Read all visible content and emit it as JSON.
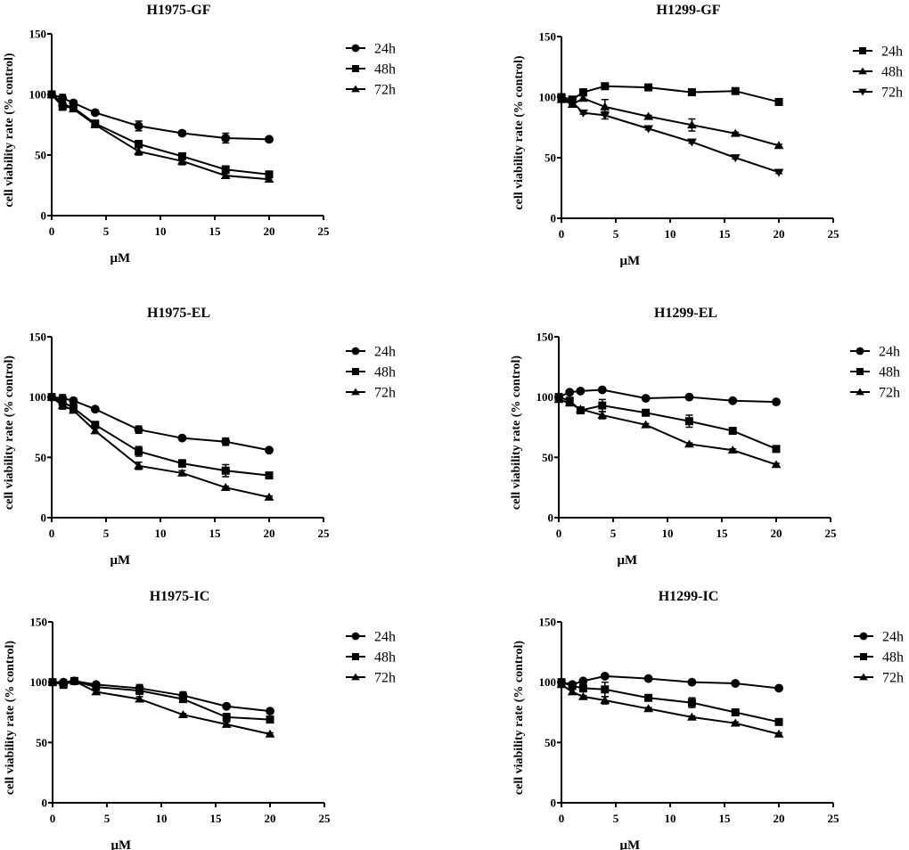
{
  "chart_data": [
    {
      "type": "line",
      "title": "H1975-GF",
      "xlabel": "μM",
      "ylabel": "cell viability rate (% control)",
      "xlim": [
        0,
        25
      ],
      "ylim": [
        0,
        150
      ],
      "xticks": [
        0,
        5,
        10,
        15,
        20,
        25
      ],
      "yticks": [
        0,
        50,
        100,
        150
      ],
      "legend_position": "right",
      "x": [
        0,
        1,
        2,
        4,
        8,
        12,
        16,
        20
      ],
      "series": [
        {
          "name": "24h",
          "marker": "circle",
          "values": [
            100,
            97,
            93,
            85,
            74,
            68,
            64,
            63
          ],
          "errors": [
            0,
            3,
            2,
            1,
            4,
            2,
            4,
            1
          ]
        },
        {
          "name": "48h",
          "marker": "square",
          "values": [
            100,
            90,
            89,
            76,
            59,
            49,
            38,
            34
          ],
          "errors": [
            0,
            3,
            3,
            2,
            3,
            2,
            3,
            2
          ]
        },
        {
          "name": "72h",
          "marker": "triangle-up",
          "values": [
            100,
            93,
            88,
            75,
            53,
            45,
            33,
            30
          ],
          "errors": [
            0,
            3,
            2,
            2,
            3,
            3,
            2,
            2
          ]
        }
      ]
    },
    {
      "type": "line",
      "title": "H1299-GF",
      "xlabel": "μM",
      "ylabel": "cell viability rate (% control)",
      "xlim": [
        0,
        25
      ],
      "ylim": [
        0,
        150
      ],
      "xticks": [
        0,
        5,
        10,
        15,
        20,
        25
      ],
      "yticks": [
        0,
        50,
        100,
        150
      ],
      "legend_position": "right",
      "x": [
        0,
        1,
        2,
        4,
        8,
        12,
        16,
        20
      ],
      "series": [
        {
          "name": "24h",
          "marker": "square",
          "values": [
            100,
            98,
            104,
            109,
            108,
            104,
            105,
            96
          ],
          "errors": [
            2,
            2,
            1,
            1,
            1,
            1,
            1,
            1
          ]
        },
        {
          "name": "48h",
          "marker": "triangle-up",
          "values": [
            98,
            94,
            99,
            92,
            84,
            77,
            70,
            60
          ],
          "errors": [
            2,
            2,
            2,
            6,
            1,
            5,
            1,
            1
          ]
        },
        {
          "name": "72h",
          "marker": "triangle-down",
          "values": [
            99,
            96,
            87,
            85,
            74,
            63,
            50,
            38
          ],
          "errors": [
            2,
            2,
            1,
            3,
            1,
            1,
            1,
            1
          ]
        }
      ]
    },
    {
      "type": "line",
      "title": "H1975-EL",
      "xlabel": "μM",
      "ylabel": "cell viability rate (% control)",
      "xlim": [
        0,
        25
      ],
      "ylim": [
        0,
        150
      ],
      "xticks": [
        0,
        5,
        10,
        15,
        20,
        25
      ],
      "yticks": [
        0,
        50,
        100,
        150
      ],
      "legend_position": "right",
      "x": [
        0,
        1,
        2,
        4,
        8,
        12,
        16,
        20
      ],
      "series": [
        {
          "name": "24h",
          "marker": "circle",
          "values": [
            100,
            99,
            97,
            90,
            73,
            66,
            63,
            56
          ],
          "errors": [
            0,
            3,
            2,
            1,
            3,
            1,
            3,
            1
          ]
        },
        {
          "name": "48h",
          "marker": "square",
          "values": [
            100,
            96,
            91,
            77,
            55,
            45,
            39,
            35
          ],
          "errors": [
            0,
            4,
            3,
            2,
            4,
            3,
            5,
            2
          ]
        },
        {
          "name": "72h",
          "marker": "triangle-up",
          "values": [
            100,
            93,
            89,
            72,
            43,
            37,
            25,
            17
          ],
          "errors": [
            0,
            3,
            2,
            2,
            3,
            2,
            1,
            1
          ]
        }
      ]
    },
    {
      "type": "line",
      "title": "H1299-EL",
      "xlabel": "μM",
      "ylabel": "cell viability rate (% control)",
      "xlim": [
        0,
        25
      ],
      "ylim": [
        0,
        150
      ],
      "xticks": [
        0,
        5,
        10,
        15,
        20,
        25
      ],
      "yticks": [
        0,
        50,
        100,
        150
      ],
      "legend_position": "right",
      "x": [
        0,
        1,
        2,
        4,
        8,
        12,
        16,
        20
      ],
      "series": [
        {
          "name": "24h",
          "marker": "circle",
          "values": [
            100,
            104,
            105,
            106,
            99,
            100,
            97,
            96
          ],
          "errors": [
            2,
            1,
            1,
            1,
            1,
            1,
            1,
            1
          ]
        },
        {
          "name": "48h",
          "marker": "square",
          "values": [
            100,
            97,
            89,
            93,
            87,
            80,
            72,
            57
          ],
          "errors": [
            2,
            2,
            2,
            5,
            1,
            5,
            1,
            1
          ]
        },
        {
          "name": "72h",
          "marker": "triangle-up",
          "values": [
            98,
            95,
            90,
            85,
            77,
            61,
            56,
            44
          ],
          "errors": [
            2,
            2,
            1,
            3,
            1,
            1,
            1,
            1
          ]
        }
      ]
    },
    {
      "type": "line",
      "title": "H1975-IC",
      "xlabel": "μM",
      "ylabel": "cell viability rate (% control)",
      "xlim": [
        0,
        25
      ],
      "ylim": [
        0,
        150
      ],
      "xticks": [
        0,
        5,
        10,
        15,
        20,
        25
      ],
      "yticks": [
        0,
        50,
        100,
        150
      ],
      "legend_position": "right",
      "x": [
        0,
        1,
        2,
        4,
        8,
        12,
        16,
        20
      ],
      "series": [
        {
          "name": "24h",
          "marker": "circle",
          "values": [
            100,
            100,
            101,
            98,
            95,
            89,
            80,
            76
          ],
          "errors": [
            0,
            1,
            1,
            1,
            3,
            3,
            1,
            1
          ]
        },
        {
          "name": "48h",
          "marker": "square",
          "values": [
            100,
            98,
            101,
            96,
            93,
            86,
            71,
            69
          ],
          "errors": [
            0,
            3,
            2,
            2,
            3,
            2,
            3,
            1
          ]
        },
        {
          "name": "72h",
          "marker": "triangle-up",
          "values": [
            100,
            100,
            101,
            92,
            86,
            73,
            65,
            57
          ],
          "errors": [
            0,
            1,
            1,
            2,
            2,
            1,
            2,
            1
          ]
        }
      ]
    },
    {
      "type": "line",
      "title": "H1299-IC",
      "xlabel": "μM",
      "ylabel": "cell viability rate (% control)",
      "xlim": [
        0,
        25
      ],
      "ylim": [
        0,
        150
      ],
      "xticks": [
        0,
        5,
        10,
        15,
        20,
        25
      ],
      "yticks": [
        0,
        50,
        100,
        150
      ],
      "legend_position": "right",
      "x": [
        0,
        1,
        2,
        4,
        8,
        12,
        16,
        20
      ],
      "series": [
        {
          "name": "24h",
          "marker": "circle",
          "values": [
            100,
            98,
            101,
            105,
            103,
            100,
            99,
            95
          ],
          "errors": [
            2,
            1,
            1,
            1,
            1,
            1,
            1,
            1
          ]
        },
        {
          "name": "48h",
          "marker": "square",
          "values": [
            100,
            97,
            95,
            94,
            87,
            83,
            75,
            67
          ],
          "errors": [
            2,
            2,
            3,
            6,
            1,
            4,
            1,
            1
          ]
        },
        {
          "name": "72h",
          "marker": "triangle-up",
          "values": [
            98,
            92,
            88,
            85,
            78,
            71,
            66,
            57
          ],
          "errors": [
            2,
            2,
            1,
            3,
            1,
            1,
            1,
            1
          ]
        }
      ]
    }
  ]
}
